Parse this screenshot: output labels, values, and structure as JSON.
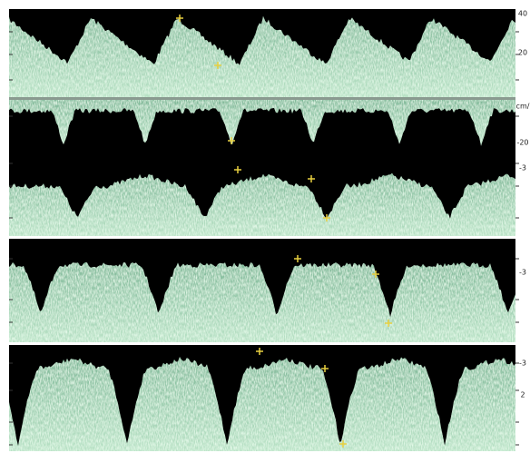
{
  "scale_labels": [
    "40",
    "20",
    "cm/",
    "-20",
    "-3",
    "-3",
    "-3",
    "2"
  ]
}
